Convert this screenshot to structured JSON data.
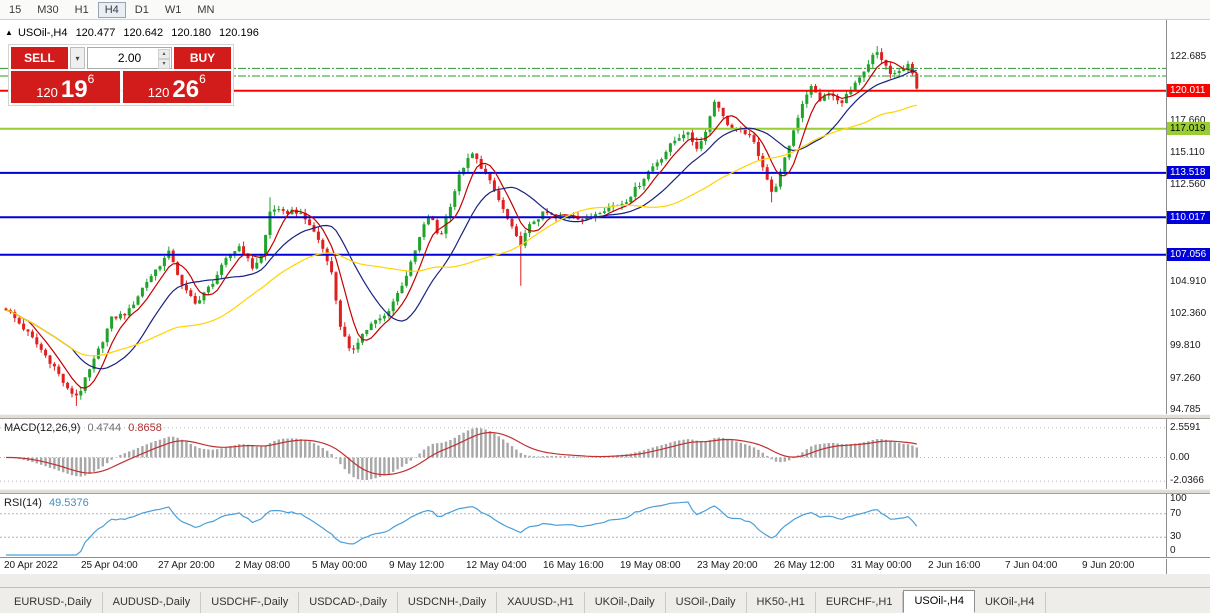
{
  "colors": {
    "up": "#1fa32b",
    "down": "#e01f1f",
    "ma_fast": "#c40000",
    "ma_mid": "#1a237e",
    "ma_slow": "#ffd400",
    "level_red": "#ff0000",
    "level_green": "#9acd32",
    "level_blue": "#0000dd",
    "dashdot_green": "#2e9b2e",
    "macd_hist": "#a8a8a8",
    "macd_signal": "#c03030",
    "rsi_line": "#4a9fd8"
  },
  "toolbar": {
    "timeframes": [
      {
        "label": "15",
        "active": false
      },
      {
        "label": "M30",
        "active": false
      },
      {
        "label": "H1",
        "active": false
      },
      {
        "label": "H4",
        "active": true
      },
      {
        "label": "D1",
        "active": false
      },
      {
        "label": "W1",
        "active": false
      },
      {
        "label": "MN",
        "active": false
      }
    ]
  },
  "symbol_header": {
    "expander": "▲",
    "symbol": "USOil-,H4",
    "open": "120.477",
    "high": "120.642",
    "low": "120.180",
    "close": "120.196"
  },
  "trade_panel": {
    "sell_label": "SELL",
    "buy_label": "BUY",
    "dropdown_icon": "▾",
    "volume": "2.00",
    "volume_up_icon": "▴",
    "volume_down_icon": "▾",
    "sell_price": {
      "prefix": "120",
      "main": "19",
      "sup": "6"
    },
    "buy_price": {
      "prefix": "120",
      "main": "26",
      "sup": "6"
    }
  },
  "price_axis": {
    "plain_labels": [
      "122.685",
      "117.660",
      "115.110",
      "112.560",
      "104.910",
      "102.360",
      "99.810",
      "97.260",
      "94.785"
    ],
    "badges": [
      {
        "text": "120.011",
        "color": "#ff0000",
        "text_color": "#ffffff"
      },
      {
        "text": "117.019",
        "color": "#9acd32",
        "text_color": "#000000"
      },
      {
        "text": "113.518",
        "color": "#0000dd",
        "text_color": "#ffffff"
      },
      {
        "text": "110.017",
        "color": "#0000dd",
        "text_color": "#ffffff"
      },
      {
        "text": "107.056",
        "color": "#0000dd",
        "text_color": "#ffffff"
      }
    ]
  },
  "macd_panel": {
    "label": "MACD(12,26,9)",
    "value": "0.4744",
    "signal_value": "0.8658",
    "axis_labels": [
      {
        "text": "2.5591",
        "value": 2.5591
      },
      {
        "text": "0.00",
        "value": 0
      },
      {
        "text": "-2.0366",
        "value": -2.0366
      }
    ]
  },
  "rsi_panel": {
    "label": "RSI(14)",
    "value": "49.5376",
    "axis_labels": [
      {
        "text": "100",
        "value": 100
      },
      {
        "text": "70",
        "value": 70
      },
      {
        "text": "30",
        "value": 30
      },
      {
        "text": "0",
        "value": 0
      }
    ],
    "levels": [
      70,
      30
    ]
  },
  "time_axis": [
    "20 Apr 2022",
    "25 Apr 04:00",
    "27 Apr 20:00",
    "2 May 08:00",
    "5 May 00:00",
    "9 May 12:00",
    "12 May 04:00",
    "16 May 16:00",
    "19 May 08:00",
    "23 May 20:00",
    "26 May 12:00",
    "31 May 00:00",
    "2 Jun 16:00",
    "7 Jun 04:00",
    "9 Jun 20:00"
  ],
  "tabs": [
    {
      "label": "EURUSD-,Daily",
      "active": false
    },
    {
      "label": "AUDUSD-,Daily",
      "active": false
    },
    {
      "label": "USDCHF-,Daily",
      "active": false
    },
    {
      "label": "USDCAD-,Daily",
      "active": false
    },
    {
      "label": "USDCNH-,Daily",
      "active": false
    },
    {
      "label": "XAUUSD-,H1",
      "active": false
    },
    {
      "label": "UKOil-,Daily",
      "active": false
    },
    {
      "label": "USOil-,Daily",
      "active": false
    },
    {
      "label": "HK50-,H1",
      "active": false
    },
    {
      "label": "EURCHF-,H1",
      "active": false
    },
    {
      "label": "USOil-,H4",
      "active": true
    },
    {
      "label": "UKOil-,H4",
      "active": false
    }
  ],
  "chart_data": {
    "type": "candlestick",
    "symbol": "USOil-,H4",
    "ohlc_current": {
      "open": 120.477,
      "high": 120.642,
      "low": 120.18,
      "close": 120.196
    },
    "scale": {
      "p_min": 94.62,
      "p_max": 125.45
    },
    "candle_count": 208,
    "price_path": [
      [
        0.0,
        102.8
      ],
      [
        0.026,
        100.7
      ],
      [
        0.054,
        98.1
      ],
      [
        0.068,
        96.3
      ],
      [
        0.079,
        95.9
      ],
      [
        0.098,
        98.9
      ],
      [
        0.116,
        102.0
      ],
      [
        0.134,
        102.5
      ],
      [
        0.153,
        104.8
      ],
      [
        0.169,
        106.3
      ],
      [
        0.18,
        107.3
      ],
      [
        0.194,
        104.4
      ],
      [
        0.21,
        103.2
      ],
      [
        0.226,
        104.8
      ],
      [
        0.244,
        106.9
      ],
      [
        0.257,
        107.8
      ],
      [
        0.27,
        106.0
      ],
      [
        0.281,
        107.0
      ],
      [
        0.291,
        110.9
      ],
      [
        0.303,
        110.3
      ],
      [
        0.317,
        110.6
      ],
      [
        0.332,
        109.6
      ],
      [
        0.345,
        108.0
      ],
      [
        0.356,
        106.2
      ],
      [
        0.367,
        101.5
      ],
      [
        0.378,
        99.2
      ],
      [
        0.389,
        100.6
      ],
      [
        0.402,
        101.6
      ],
      [
        0.416,
        102.2
      ],
      [
        0.43,
        104.0
      ],
      [
        0.443,
        106.0
      ],
      [
        0.457,
        109.0
      ],
      [
        0.465,
        110.3
      ],
      [
        0.476,
        108.3
      ],
      [
        0.49,
        111.5
      ],
      [
        0.5,
        113.8
      ],
      [
        0.512,
        115.0
      ],
      [
        0.522,
        114.0
      ],
      [
        0.537,
        112.0
      ],
      [
        0.551,
        109.8
      ],
      [
        0.564,
        107.8
      ],
      [
        0.577,
        109.6
      ],
      [
        0.592,
        110.4
      ],
      [
        0.606,
        109.9
      ],
      [
        0.621,
        110.3
      ],
      [
        0.636,
        109.7
      ],
      [
        0.65,
        110.5
      ],
      [
        0.665,
        110.9
      ],
      [
        0.679,
        111.2
      ],
      [
        0.694,
        112.5
      ],
      [
        0.707,
        113.8
      ],
      [
        0.72,
        114.8
      ],
      [
        0.733,
        116.0
      ],
      [
        0.746,
        116.8
      ],
      [
        0.76,
        115.4
      ],
      [
        0.771,
        117.5
      ],
      [
        0.779,
        119.5
      ],
      [
        0.788,
        117.8
      ],
      [
        0.799,
        116.9
      ],
      [
        0.811,
        116.8
      ],
      [
        0.822,
        115.8
      ],
      [
        0.832,
        113.9
      ],
      [
        0.841,
        111.8
      ],
      [
        0.852,
        113.8
      ],
      [
        0.863,
        116.5
      ],
      [
        0.874,
        119.0
      ],
      [
        0.883,
        120.4
      ],
      [
        0.894,
        119.3
      ],
      [
        0.905,
        119.8
      ],
      [
        0.915,
        119.0
      ],
      [
        0.926,
        119.9
      ],
      [
        0.935,
        120.7
      ],
      [
        0.944,
        121.6
      ],
      [
        0.955,
        123.2
      ],
      [
        0.964,
        122.2
      ],
      [
        0.973,
        121.1
      ],
      [
        0.981,
        121.5
      ],
      [
        0.99,
        122.3
      ],
      [
        1.0,
        120.2
      ]
    ],
    "spikes": [
      {
        "f": 0.079,
        "low": 95.1
      },
      {
        "f": 0.291,
        "high": 111.6
      },
      {
        "f": 0.564,
        "low": 104.6
      },
      {
        "f": 0.841,
        "low": 111.2
      },
      {
        "f": 0.955,
        "high": 123.55
      }
    ],
    "levels": [
      {
        "price": 120.011,
        "style": "solid",
        "color_key": "level_red"
      },
      {
        "price": 117.019,
        "style": "solid",
        "color_key": "level_green"
      },
      {
        "price": 113.518,
        "style": "solid",
        "color_key": "level_blue"
      },
      {
        "price": 110.017,
        "style": "solid",
        "color_key": "level_blue"
      },
      {
        "price": 107.056,
        "style": "solid",
        "color_key": "level_blue"
      }
    ],
    "dashdot_levels": [
      121.78,
      121.18
    ],
    "moving_averages": [
      {
        "period": 6,
        "color_key": "ma_fast"
      },
      {
        "period": 16,
        "color_key": "ma_mid"
      },
      {
        "period": 40,
        "color_key": "ma_slow"
      }
    ],
    "indicators": {
      "macd": {
        "fast": 12,
        "slow": 26,
        "signal": 9,
        "current": 0.4744,
        "current_signal": 0.8658,
        "range": [
          -2.55,
          3.15
        ]
      },
      "rsi": {
        "period": 14,
        "current": 49.5376,
        "range": [
          0,
          100
        ]
      }
    }
  }
}
